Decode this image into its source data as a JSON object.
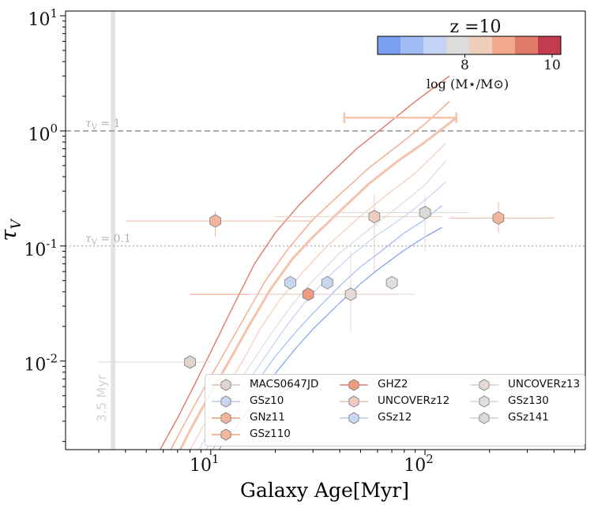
{
  "chart_data": {
    "type": "scatter",
    "title": "",
    "xlabel": "Galaxy Age[Myr]",
    "ylabel": "τ_V",
    "x_scale": "log",
    "y_scale": "log",
    "xlim": [
      2.1,
      560
    ],
    "ylim": [
      0.0017,
      11
    ],
    "x_ticks": [
      {
        "value": 10,
        "label": "10^1"
      },
      {
        "value": 100,
        "label": "10^2"
      }
    ],
    "y_ticks": [
      {
        "value": 10,
        "label": "10^1"
      },
      {
        "value": 1,
        "label": "10^0"
      },
      {
        "value": 0.1,
        "label": "10^-1"
      },
      {
        "value": 0.01,
        "label": "10^-2"
      }
    ],
    "reference_lines": [
      {
        "label": "τ_V = 1",
        "y": 1.0,
        "style": "dashed",
        "color": "#999999"
      },
      {
        "label": "τ_V = 0.1",
        "y": 0.1,
        "style": "dotted",
        "color": "#bbbbbb"
      }
    ],
    "vertical_marker": {
      "x": 3.5,
      "label": "3.5 Myr",
      "color": "#e3e3e3"
    },
    "colorbar": {
      "title": "z =10",
      "label": "log (M⋆/M⊙)",
      "ticks": [
        8,
        10
      ],
      "range": [
        6,
        10.2
      ],
      "colors": [
        "#7b9ff0",
        "#9fbaf6",
        "#c3d3f5",
        "#dcdcdc",
        "#efcdbb",
        "#f5a98c",
        "#e0796a",
        "#c33b4e"
      ]
    },
    "model_curves": [
      {
        "logM": 6.5,
        "color": "#7b9ff0",
        "width": 1.2,
        "x": [
          10.9,
          13,
          16,
          20,
          25,
          30,
          40,
          50,
          60,
          80,
          100,
          120
        ],
        "y": [
          0.0017,
          0.0026,
          0.0045,
          0.0078,
          0.013,
          0.019,
          0.032,
          0.047,
          0.062,
          0.092,
          0.12,
          0.145
        ]
      },
      {
        "logM": 7.0,
        "color": "#9fbaf6",
        "width": 1.2,
        "x": [
          10.2,
          12,
          15,
          20,
          25,
          30,
          40,
          50,
          60,
          80,
          100,
          120
        ],
        "y": [
          0.0017,
          0.0027,
          0.0052,
          0.011,
          0.018,
          0.026,
          0.045,
          0.066,
          0.085,
          0.13,
          0.17,
          0.225
        ]
      },
      {
        "logM": 7.5,
        "color": "#c3d3f5",
        "width": 1.2,
        "x": [
          9.5,
          11,
          14,
          18,
          22,
          27,
          35,
          45,
          60,
          80,
          100,
          125
        ],
        "y": [
          0.0017,
          0.0027,
          0.0056,
          0.011,
          0.019,
          0.031,
          0.053,
          0.082,
          0.125,
          0.18,
          0.25,
          0.36
        ]
      },
      {
        "logM": 8.0,
        "color": "#dcdcdc",
        "width": 1.2,
        "x": [
          8.8,
          10,
          12,
          15,
          19,
          24,
          30,
          40,
          55,
          75,
          100,
          125
        ],
        "y": [
          0.0017,
          0.0026,
          0.0045,
          0.0088,
          0.017,
          0.031,
          0.05,
          0.087,
          0.14,
          0.22,
          0.34,
          0.55
        ]
      },
      {
        "logM": 8.5,
        "color": "#efcdbb",
        "width": 1.2,
        "x": [
          8.0,
          9,
          11,
          14,
          17,
          21,
          27,
          35,
          48,
          65,
          90,
          125
        ],
        "y": [
          0.0017,
          0.0025,
          0.0048,
          0.0098,
          0.019,
          0.034,
          0.06,
          0.1,
          0.17,
          0.27,
          0.43,
          0.78
        ]
      },
      {
        "logM": 9.0,
        "color": "#f5c2ac",
        "width": 3.0,
        "x": [
          7.2,
          8,
          10,
          12,
          15,
          19,
          24,
          30,
          40,
          55,
          75,
          100,
          140
        ],
        "y": [
          0.0017,
          0.0025,
          0.0053,
          0.0095,
          0.02,
          0.042,
          0.077,
          0.12,
          0.2,
          0.35,
          0.55,
          0.8,
          1.3
        ]
      },
      {
        "logM": 9.5,
        "color": "#f5a98c",
        "width": 1.4,
        "x": [
          6.5,
          7.5,
          9,
          11,
          14,
          18,
          23,
          30,
          40,
          55,
          75,
          100,
          130
        ],
        "y": [
          0.0017,
          0.0028,
          0.0052,
          0.01,
          0.022,
          0.05,
          0.095,
          0.17,
          0.28,
          0.48,
          0.75,
          1.15,
          1.8
        ]
      },
      {
        "logM": 10.0,
        "color": "#e0796a",
        "width": 1.4,
        "x": [
          5.8,
          7,
          8.5,
          10,
          12.5,
          16,
          20,
          26,
          35,
          48,
          65,
          90,
          130
        ],
        "y": [
          0.0017,
          0.0032,
          0.0065,
          0.012,
          0.028,
          0.07,
          0.13,
          0.23,
          0.4,
          0.7,
          1.1,
          1.8,
          3.0
        ]
      }
    ],
    "horizontal_bar": {
      "x": [
        42,
        140
      ],
      "y": 1.3,
      "color": "#f5c2ac"
    },
    "points": [
      {
        "name": "MACS0647JD",
        "x": 8.0,
        "y": 0.0098,
        "logM": 8.2,
        "color": "#dfd4cf",
        "xerr": [
          3.0,
          10.0
        ],
        "yerr": [
          0.0098,
          0.0098
        ]
      },
      {
        "name": "GSz10",
        "x": 23.5,
        "y": 0.048,
        "logM": 7.2,
        "color": "#c8d7ef",
        "xerr": [
          23.5,
          23.5
        ],
        "yerr": [
          0.048,
          0.048
        ]
      },
      {
        "name": "GNz11",
        "x": 10.5,
        "y": 0.165,
        "logM": 9.3,
        "color": "#f2b59b",
        "xerr": [
          4.0,
          30.0
        ],
        "yerr": [
          0.12,
          0.2
        ]
      },
      {
        "name": "GSz110",
        "x": 220,
        "y": 0.175,
        "logM": 9.4,
        "color": "#f3b79e",
        "xerr": [
          130,
          400
        ],
        "yerr": [
          0.13,
          0.24
        ]
      },
      {
        "name": "GHZ2",
        "x": 28.5,
        "y": 0.038,
        "logM": 9.6,
        "color": "#ec9a82",
        "xerr": [
          8.0,
          75.0
        ],
        "yerr": [
          0.038,
          0.038
        ]
      },
      {
        "name": "UNCOVERz12",
        "x": 58,
        "y": 0.18,
        "logM": 8.6,
        "color": "#eecdbf",
        "xerr": [
          20.0,
          120.0
        ],
        "yerr": [
          0.06,
          0.28
        ]
      },
      {
        "name": "GSz12",
        "x": 35,
        "y": 0.048,
        "logM": 7.4,
        "color": "#c8d7ef",
        "xerr": [
          35,
          35
        ],
        "yerr": [
          0.048,
          0.048
        ]
      },
      {
        "name": "UNCOVERz13",
        "x": 45,
        "y": 0.038,
        "logM": 8.3,
        "color": "#e4d9d5",
        "xerr": [
          15.0,
          90.0
        ],
        "yerr": [
          0.018,
          0.09
        ]
      },
      {
        "name": "GSz130",
        "x": 70,
        "y": 0.048,
        "logM": 8.0,
        "color": "#e1e0df",
        "xerr": [
          70,
          70
        ],
        "yerr": [
          0.048,
          0.048
        ]
      },
      {
        "name": "GSz141",
        "x": 100,
        "y": 0.195,
        "logM": 8.0,
        "color": "#dcdad9",
        "xerr": [
          40.0,
          160.0
        ],
        "yerr": [
          0.09,
          0.28
        ]
      }
    ],
    "legend": {
      "placement": "lower-right",
      "columns": [
        [
          "MACS0647JD",
          "GSz10",
          "GNz11",
          "GSz110"
        ],
        [
          "GHZ2",
          "UNCOVERz12",
          "GSz12"
        ],
        [
          "UNCOVERz13",
          "GSz130",
          "GSz141"
        ]
      ]
    }
  }
}
